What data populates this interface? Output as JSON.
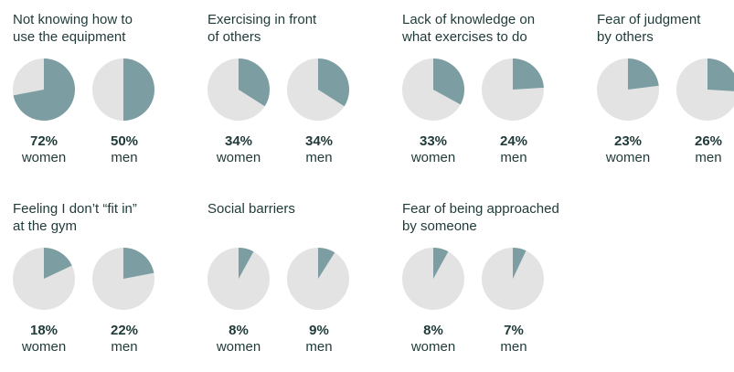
{
  "colors": {
    "accent": "#7c9da1",
    "base": "#e3e3e3",
    "text": "#1f3a39"
  },
  "chart_data": {
    "type": "pie",
    "panels": [
      {
        "title": "Not knowing how to\nuse the equipment",
        "women": {
          "value": 72,
          "label": "72%",
          "group": "women"
        },
        "men": {
          "value": 50,
          "label": "50%",
          "group": "men"
        }
      },
      {
        "title": "Exercising in front\nof others",
        "women": {
          "value": 34,
          "label": "34%",
          "group": "women"
        },
        "men": {
          "value": 34,
          "label": "34%",
          "group": "men"
        }
      },
      {
        "title": "Lack of knowledge on\nwhat exercises to do",
        "women": {
          "value": 33,
          "label": "33%",
          "group": "women"
        },
        "men": {
          "value": 24,
          "label": "24%",
          "group": "men"
        }
      },
      {
        "title": "Fear of judgment\nby others",
        "women": {
          "value": 23,
          "label": "23%",
          "group": "women"
        },
        "men": {
          "value": 26,
          "label": "26%",
          "group": "men"
        }
      },
      {
        "title": "Feeling I don’t “fit in”\nat the gym",
        "women": {
          "value": 18,
          "label": "18%",
          "group": "women"
        },
        "men": {
          "value": 22,
          "label": "22%",
          "group": "men"
        }
      },
      {
        "title": "Social barriers",
        "women": {
          "value": 8,
          "label": "8%",
          "group": "women"
        },
        "men": {
          "value": 9,
          "label": "9%",
          "group": "men"
        }
      },
      {
        "title": "Fear of being approached\nby someone",
        "women": {
          "value": 8,
          "label": "8%",
          "group": "women"
        },
        "men": {
          "value": 7,
          "label": "7%",
          "group": "men"
        }
      }
    ]
  }
}
